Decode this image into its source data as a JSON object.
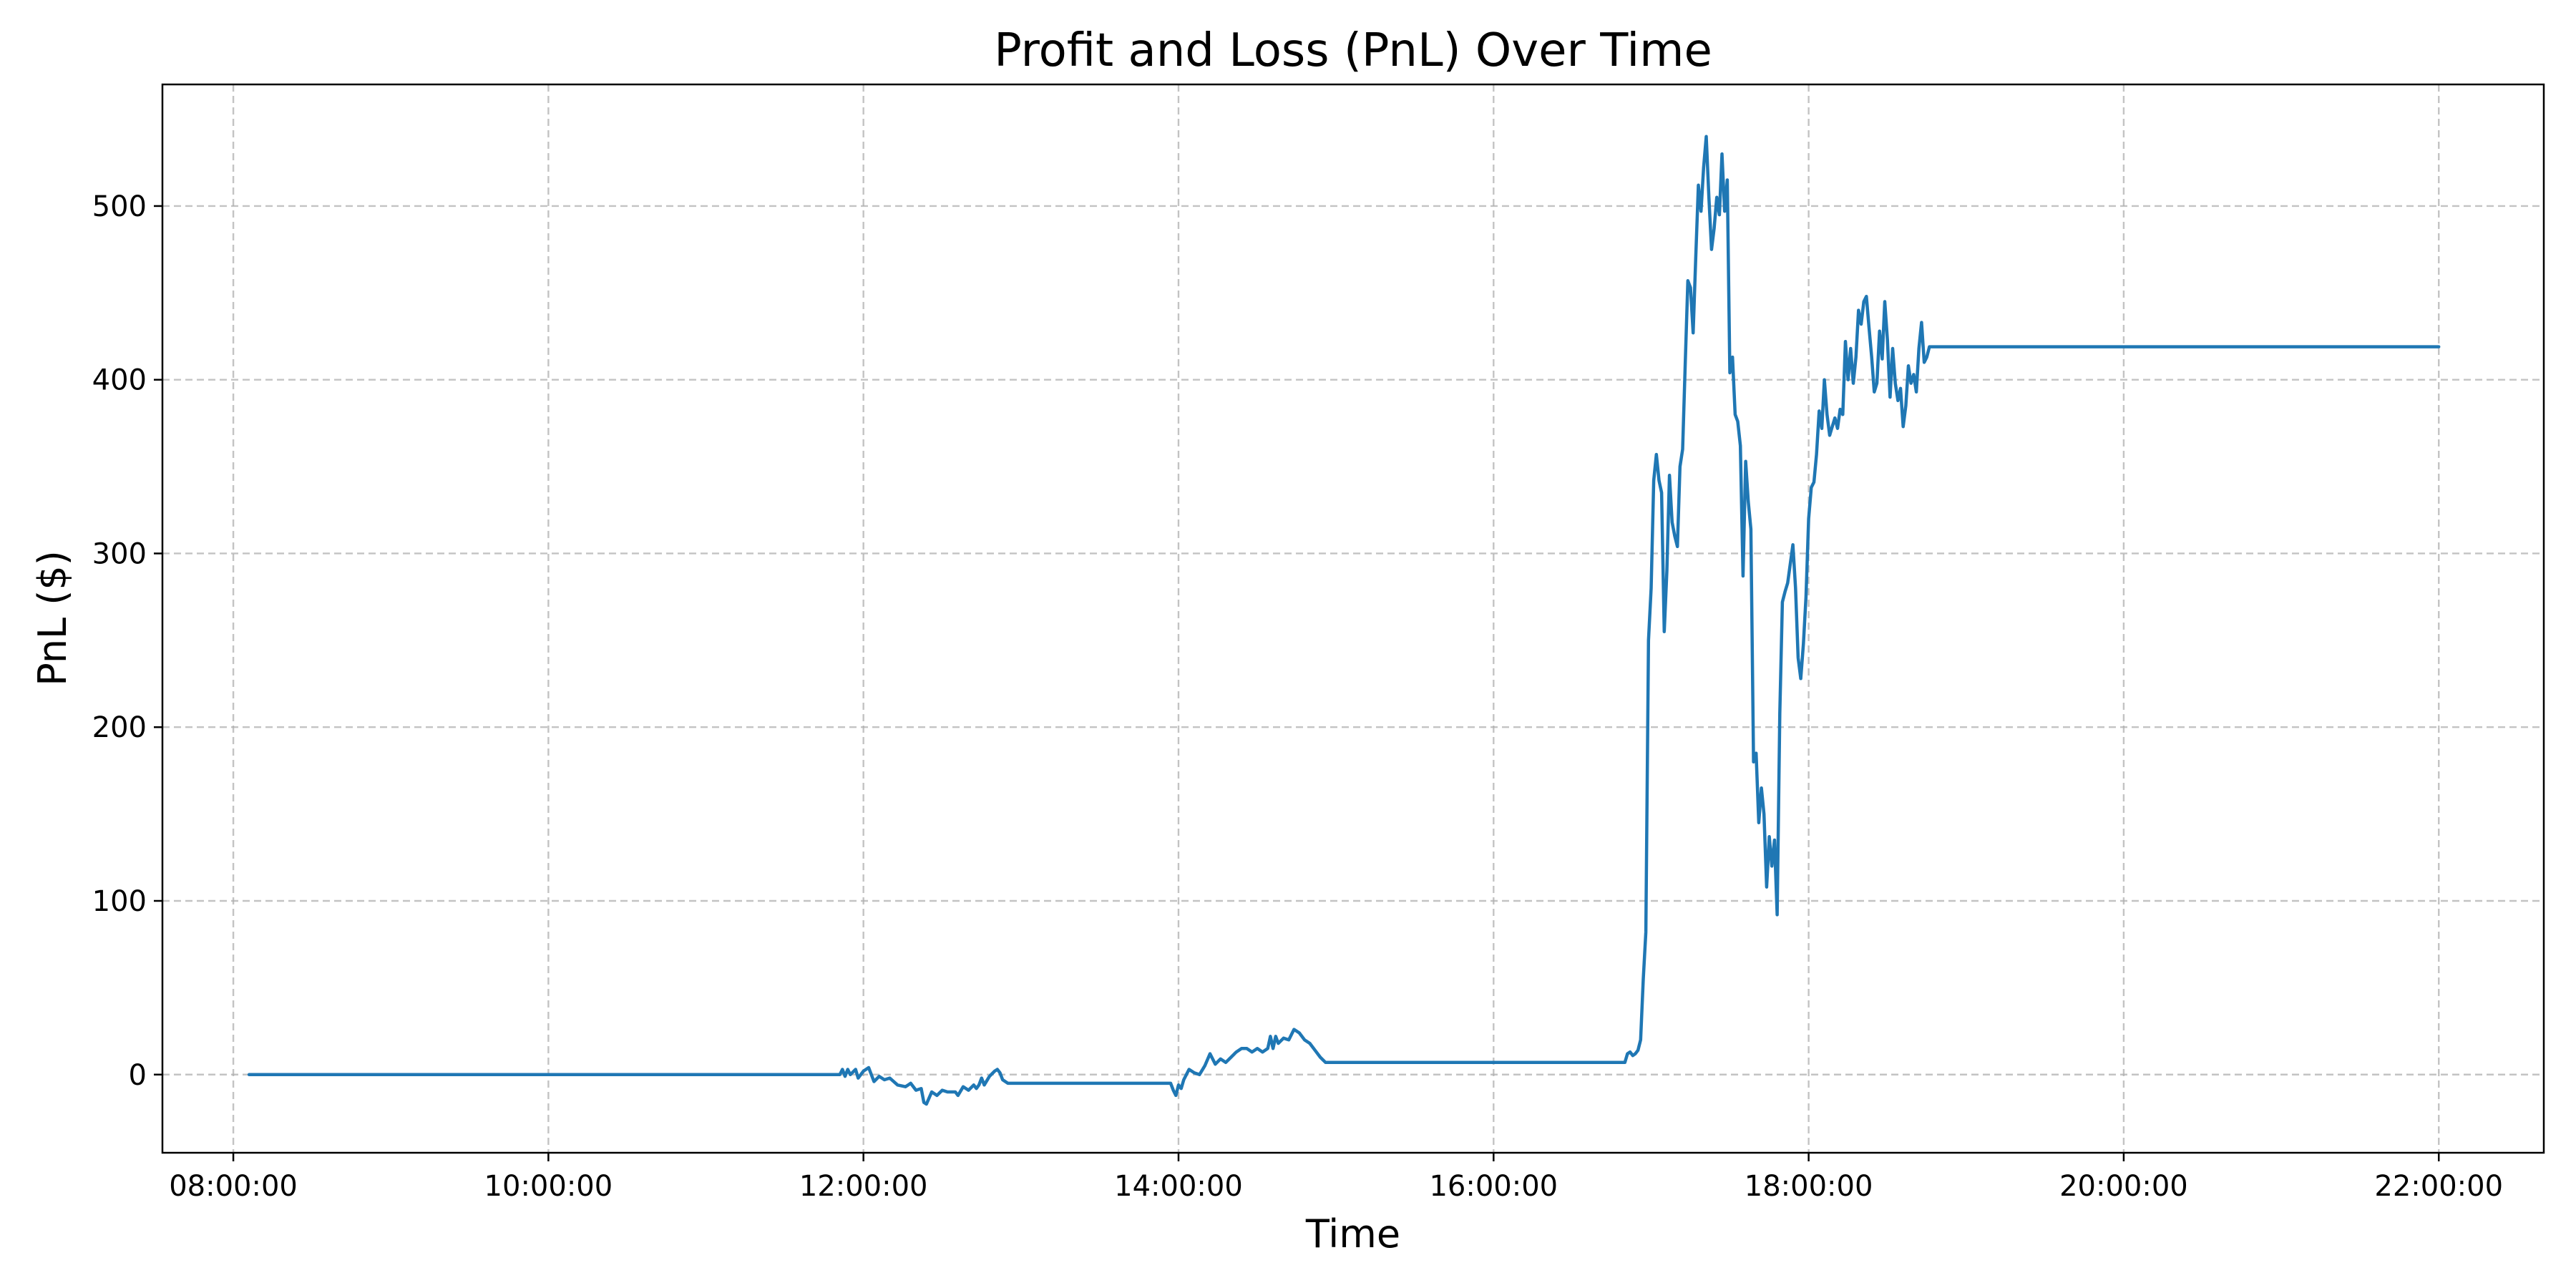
{
  "chart_data": {
    "type": "line",
    "title": "Profit and Loss (PnL) Over Time",
    "xlabel": "Time",
    "ylabel": "PnL ($)",
    "x_ticks": [
      "08:00:00",
      "10:00:00",
      "12:00:00",
      "14:00:00",
      "16:00:00",
      "18:00:00",
      "20:00:00",
      "22:00:00"
    ],
    "y_ticks": [
      0,
      100,
      200,
      300,
      400,
      500
    ],
    "xlim": [
      "07:33:00",
      "22:40:00"
    ],
    "ylim": [
      -45,
      570
    ],
    "grid": true,
    "colors": {
      "line": "#1f77b4",
      "grid": "#b0b0b0"
    },
    "series": [
      {
        "points": [
          [
            "08:06:00",
            0
          ],
          [
            "11:51:00",
            0
          ],
          [
            "11:52:00",
            3
          ],
          [
            "11:53:00",
            -1
          ],
          [
            "11:54:00",
            3
          ],
          [
            "11:55:00",
            0
          ],
          [
            "11:57:00",
            3
          ],
          [
            "11:58:00",
            -2
          ],
          [
            "12:00:00",
            2
          ],
          [
            "12:02:00",
            4
          ],
          [
            "12:04:00",
            -4
          ],
          [
            "12:06:00",
            -1
          ],
          [
            "12:08:00",
            -3
          ],
          [
            "12:10:00",
            -2
          ],
          [
            "12:13:00",
            -6
          ],
          [
            "12:16:00",
            -7
          ],
          [
            "12:18:00",
            -5
          ],
          [
            "12:20:00",
            -9
          ],
          [
            "12:22:00",
            -8
          ],
          [
            "12:23:00",
            -16
          ],
          [
            "12:24:00",
            -17
          ],
          [
            "12:26:00",
            -10
          ],
          [
            "12:28:00",
            -12
          ],
          [
            "12:30:00",
            -9
          ],
          [
            "12:32:00",
            -10
          ],
          [
            "12:35:00",
            -10
          ],
          [
            "12:36:00",
            -12
          ],
          [
            "12:38:00",
            -7
          ],
          [
            "12:40:00",
            -9
          ],
          [
            "12:42:00",
            -6
          ],
          [
            "12:43:00",
            -8
          ],
          [
            "12:44:00",
            -6
          ],
          [
            "12:45:00",
            -2
          ],
          [
            "12:46:00",
            -6
          ],
          [
            "12:48:00",
            -1
          ],
          [
            "12:50:00",
            2
          ],
          [
            "12:51:00",
            3
          ],
          [
            "12:52:00",
            1
          ],
          [
            "12:53:00",
            -3
          ],
          [
            "12:55:00",
            -5
          ],
          [
            "13:57:00",
            -5
          ],
          [
            "13:58:00",
            -9
          ],
          [
            "13:59:00",
            -12
          ],
          [
            "14:00:00",
            -6
          ],
          [
            "14:01:00",
            -8
          ],
          [
            "14:02:00",
            -3
          ],
          [
            "14:04:00",
            3
          ],
          [
            "14:06:00",
            1
          ],
          [
            "14:08:00",
            0
          ],
          [
            "14:10:00",
            5
          ],
          [
            "14:12:00",
            12
          ],
          [
            "14:14:00",
            6
          ],
          [
            "14:16:00",
            9
          ],
          [
            "14:18:00",
            7
          ],
          [
            "14:20:00",
            10
          ],
          [
            "14:22:00",
            13
          ],
          [
            "14:24:00",
            15
          ],
          [
            "14:26:00",
            15
          ],
          [
            "14:28:00",
            13
          ],
          [
            "14:30:00",
            15
          ],
          [
            "14:32:00",
            13
          ],
          [
            "14:34:00",
            15
          ],
          [
            "14:35:00",
            22
          ],
          [
            "14:36:00",
            15
          ],
          [
            "14:37:00",
            22
          ],
          [
            "14:38:00",
            18
          ],
          [
            "14:40:00",
            21
          ],
          [
            "14:42:00",
            20
          ],
          [
            "14:44:00",
            26
          ],
          [
            "14:46:00",
            24
          ],
          [
            "14:48:00",
            20
          ],
          [
            "14:50:00",
            18
          ],
          [
            "14:52:00",
            14
          ],
          [
            "14:54:00",
            10
          ],
          [
            "14:56:00",
            7
          ],
          [
            "16:50:00",
            7
          ],
          [
            "16:51:00",
            12
          ],
          [
            "16:52:00",
            13
          ],
          [
            "16:53:00",
            11
          ],
          [
            "16:54:00",
            12
          ],
          [
            "16:55:00",
            14
          ],
          [
            "16:56:00",
            20
          ],
          [
            "16:57:00",
            55
          ],
          [
            "16:58:00",
            82
          ],
          [
            "16:59:00",
            250
          ],
          [
            "17:00:00",
            280
          ],
          [
            "17:01:00",
            342
          ],
          [
            "17:02:00",
            357
          ],
          [
            "17:03:00",
            342
          ],
          [
            "17:04:00",
            335
          ],
          [
            "17:05:00",
            255
          ],
          [
            "17:06:00",
            290
          ],
          [
            "17:07:00",
            345
          ],
          [
            "17:08:00",
            318
          ],
          [
            "17:09:00",
            310
          ],
          [
            "17:10:00",
            304
          ],
          [
            "17:11:00",
            350
          ],
          [
            "17:12:00",
            360
          ],
          [
            "17:13:00",
            410
          ],
          [
            "17:14:00",
            457
          ],
          [
            "17:15:00",
            453
          ],
          [
            "17:16:00",
            427
          ],
          [
            "17:17:00",
            470
          ],
          [
            "17:18:00",
            512
          ],
          [
            "17:19:00",
            497
          ],
          [
            "17:20:00",
            522
          ],
          [
            "17:21:00",
            540
          ],
          [
            "17:22:00",
            505
          ],
          [
            "17:23:00",
            475
          ],
          [
            "17:24:00",
            487
          ],
          [
            "17:25:00",
            505
          ],
          [
            "17:26:00",
            495
          ],
          [
            "17:27:00",
            530
          ],
          [
            "17:28:00",
            497
          ],
          [
            "17:29:00",
            515
          ],
          [
            "17:30:00",
            404
          ],
          [
            "17:31:00",
            413
          ],
          [
            "17:32:00",
            380
          ],
          [
            "17:33:00",
            376
          ],
          [
            "17:34:00",
            362
          ],
          [
            "17:35:00",
            287
          ],
          [
            "17:36:00",
            353
          ],
          [
            "17:37:00",
            330
          ],
          [
            "17:38:00",
            314
          ],
          [
            "17:39:00",
            180
          ],
          [
            "17:40:00",
            185
          ],
          [
            "17:41:00",
            145
          ],
          [
            "17:42:00",
            165
          ],
          [
            "17:43:00",
            150
          ],
          [
            "17:44:00",
            108
          ],
          [
            "17:45:00",
            137
          ],
          [
            "17:46:00",
            120
          ],
          [
            "17:47:00",
            135
          ],
          [
            "17:48:00",
            92
          ],
          [
            "17:49:00",
            208
          ],
          [
            "17:50:00",
            272
          ],
          [
            "17:51:00",
            278
          ],
          [
            "17:52:00",
            283
          ],
          [
            "17:54:00",
            305
          ],
          [
            "17:55:00",
            280
          ],
          [
            "17:56:00",
            240
          ],
          [
            "17:57:00",
            228
          ],
          [
            "17:58:00",
            248
          ],
          [
            "17:59:00",
            275
          ],
          [
            "18:00:00",
            320
          ],
          [
            "18:01:00",
            338
          ],
          [
            "18:02:00",
            341
          ],
          [
            "18:03:00",
            357
          ],
          [
            "18:04:00",
            382
          ],
          [
            "18:05:00",
            372
          ],
          [
            "18:06:00",
            400
          ],
          [
            "18:07:00",
            380
          ],
          [
            "18:08:00",
            368
          ],
          [
            "18:09:00",
            373
          ],
          [
            "18:10:00",
            378
          ],
          [
            "18:11:00",
            372
          ],
          [
            "18:12:00",
            383
          ],
          [
            "18:13:00",
            380
          ],
          [
            "18:14:00",
            422
          ],
          [
            "18:15:00",
            400
          ],
          [
            "18:16:00",
            418
          ],
          [
            "18:17:00",
            398
          ],
          [
            "18:18:00",
            413
          ],
          [
            "18:19:00",
            440
          ],
          [
            "18:20:00",
            432
          ],
          [
            "18:21:00",
            445
          ],
          [
            "18:22:00",
            448
          ],
          [
            "18:23:00",
            430
          ],
          [
            "18:24:00",
            413
          ],
          [
            "18:25:00",
            393
          ],
          [
            "18:26:00",
            398
          ],
          [
            "18:27:00",
            428
          ],
          [
            "18:28:00",
            412
          ],
          [
            "18:29:00",
            445
          ],
          [
            "18:30:00",
            423
          ],
          [
            "18:31:00",
            390
          ],
          [
            "18:32:00",
            418
          ],
          [
            "18:33:00",
            398
          ],
          [
            "18:34:00",
            388
          ],
          [
            "18:35:00",
            395
          ],
          [
            "18:36:00",
            373
          ],
          [
            "18:37:00",
            385
          ],
          [
            "18:38:00",
            408
          ],
          [
            "18:39:00",
            398
          ],
          [
            "18:40:00",
            403
          ],
          [
            "18:41:00",
            393
          ],
          [
            "18:42:00",
            418
          ],
          [
            "18:43:00",
            433
          ],
          [
            "18:44:00",
            410
          ],
          [
            "18:45:00",
            413
          ],
          [
            "18:46:00",
            419
          ],
          [
            "22:00:00",
            419
          ]
        ]
      }
    ]
  }
}
